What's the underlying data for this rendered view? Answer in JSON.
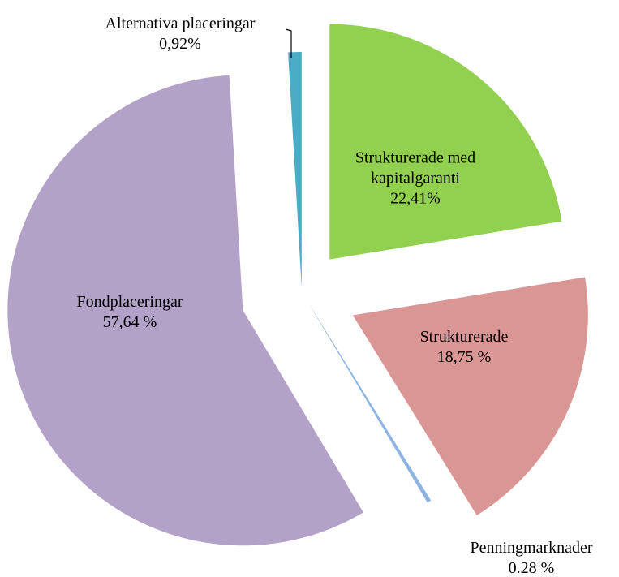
{
  "chart_data": {
    "type": "pie",
    "categories": [
      "Strukturerade med kapitalgaranti",
      "Strukturerade",
      "Penningmarknader",
      "Fondplaceringar",
      "Alternativa placeringar"
    ],
    "values": [
      22.41,
      18.75,
      0.28,
      57.64,
      0.92
    ],
    "value_labels": [
      "22,41%",
      "18,75 %",
      "0.28 %",
      "57,64 %",
      "0,92%"
    ],
    "colors": [
      "#92d050",
      "#d99694",
      "#8db3e2",
      "#b2a2c7",
      "#4bacc6"
    ]
  }
}
